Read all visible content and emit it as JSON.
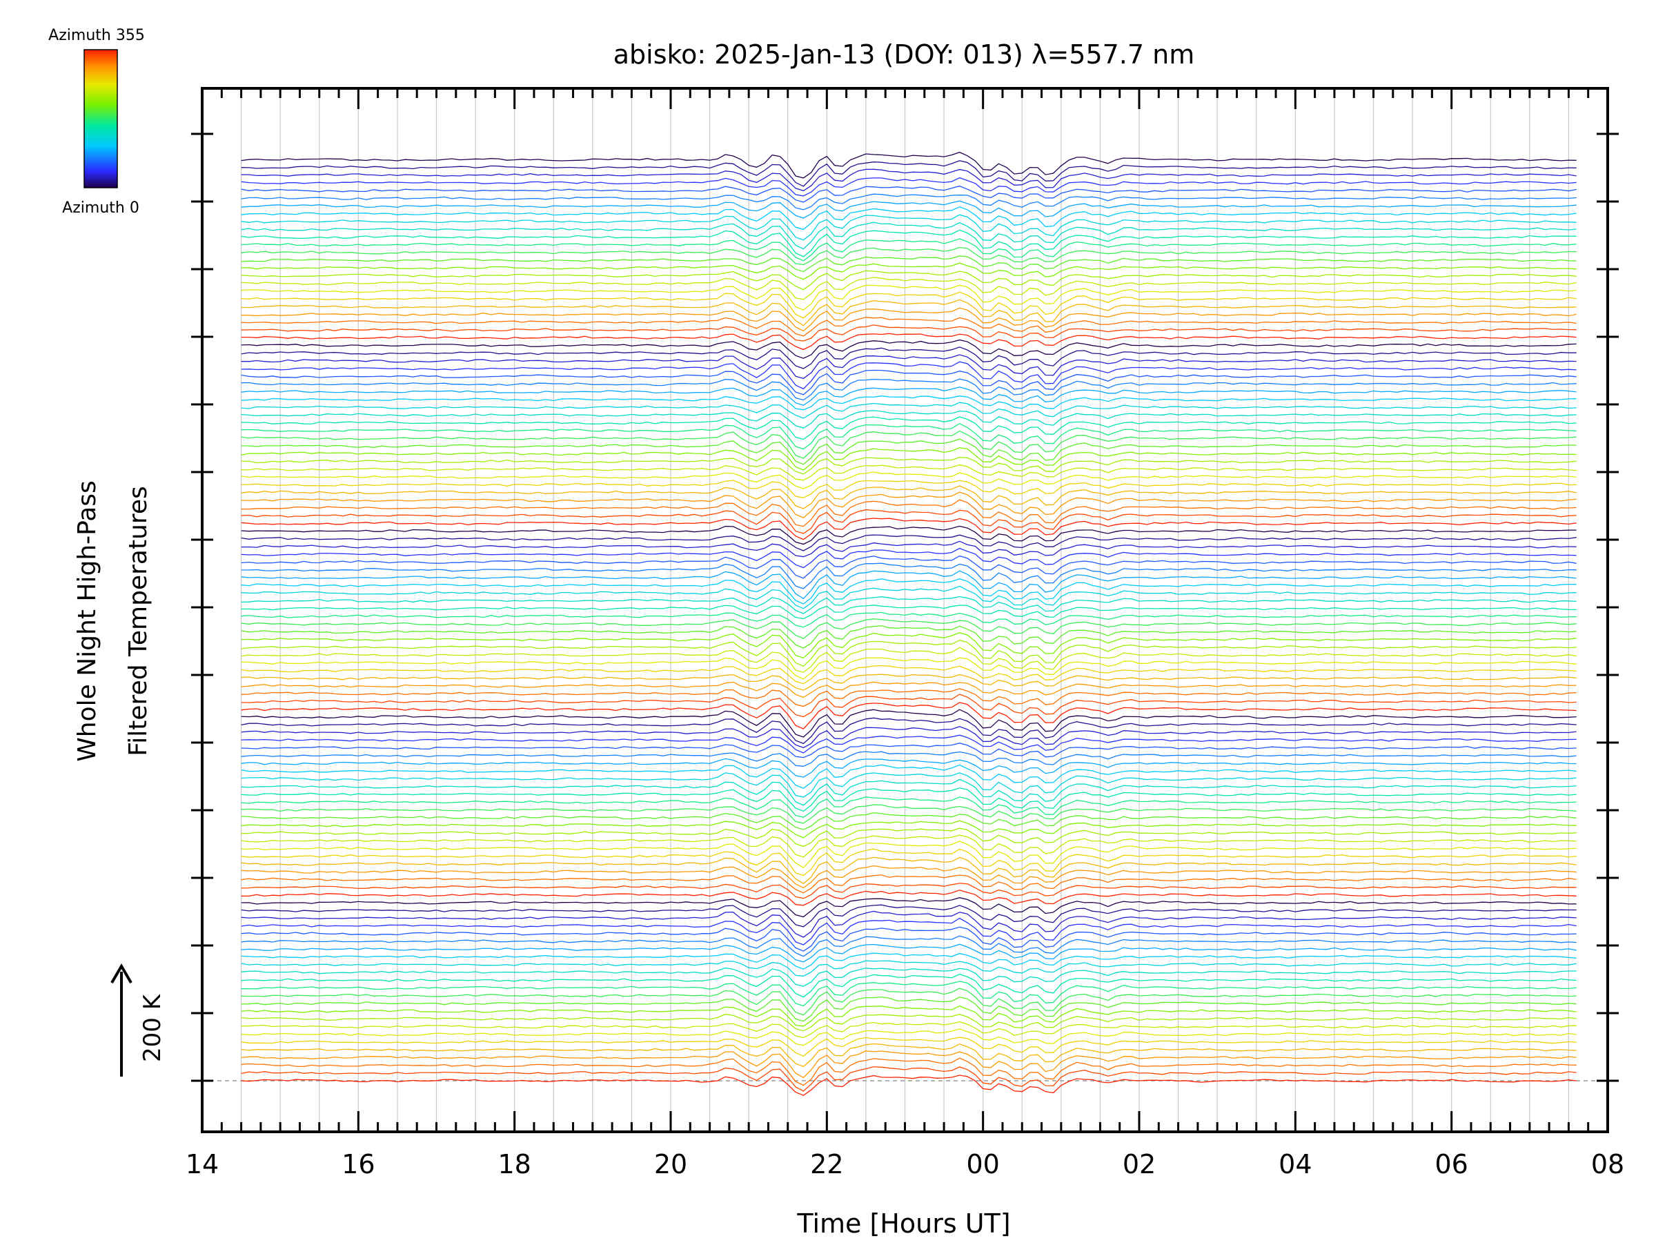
{
  "chart_data": {
    "type": "line",
    "title": "abisko: 2025-Jan-13 (DOY: 013) λ=557.7 nm",
    "xlabel": "Time [Hours UT]",
    "ylabel_line1": "Whole Night High-Pass",
    "ylabel_line2": "Filtered Temperatures",
    "scale_label": "200 K",
    "x_ticks": [
      "14",
      "16",
      "18",
      "20",
      "22",
      "00",
      "02",
      "04",
      "06",
      "08"
    ],
    "xlim_hours": [
      14,
      32
    ],
    "data_span_hours": [
      14.5,
      31.65
    ],
    "stack_groups": 5,
    "traces_per_group": 24,
    "trace_offset_K": 42,
    "colorbar": {
      "top_label": "Azimuth 355",
      "bottom_label": "Azimuth 0",
      "min": 0,
      "max": 355,
      "colormap": "rainbow"
    },
    "features": [
      {
        "hour": 20.75,
        "kind": "peak"
      },
      {
        "hour": 21.1,
        "kind": "dip"
      },
      {
        "hour": 21.3,
        "kind": "peak"
      },
      {
        "hour": 21.65,
        "kind": "deep-dip"
      },
      {
        "hour": 22.15,
        "kind": "dip"
      },
      {
        "hour": 23.75,
        "kind": "peak"
      },
      {
        "hour": 24.5,
        "kind": "dip"
      },
      {
        "hour": 24.85,
        "kind": "dip"
      }
    ]
  },
  "colors": {
    "axis": "#000000",
    "grid": "#c8c8c8",
    "baseline": "#999999",
    "background": "#ffffff"
  }
}
